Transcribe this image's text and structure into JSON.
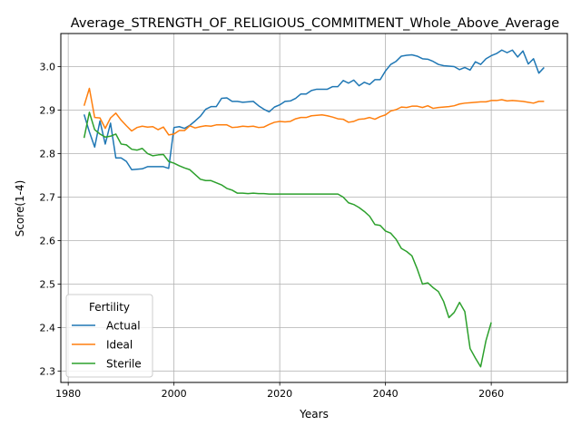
{
  "chart_data": {
    "type": "line",
    "title": "Average_STRENGTH_OF_RELIGIOUS_COMMITMENT_Whole_Above_Average",
    "xlabel": "Years",
    "ylabel": "Score(1-4)",
    "xlim": [
      1978.6,
      2074.4
    ],
    "ylim": [
      2.274,
      3.076
    ],
    "xticks": [
      1980,
      2000,
      2020,
      2040,
      2060
    ],
    "yticks": [
      2.3,
      2.4,
      2.5,
      2.6,
      2.7,
      2.8,
      2.9,
      3.0
    ],
    "ytick_labels": [
      "2.3",
      "2.4",
      "2.5",
      "2.6",
      "2.7",
      "2.8",
      "2.9",
      "3.0"
    ],
    "grid": true,
    "legend": {
      "title": "Fertility",
      "position": "lower-left"
    },
    "series": [
      {
        "name": "Actual",
        "color": "#1f77b4",
        "points": [
          [
            1983,
            2.89
          ],
          [
            1984,
            2.85
          ],
          [
            1985,
            2.815
          ],
          [
            1986,
            2.875
          ],
          [
            1987,
            2.822
          ],
          [
            1988,
            2.87
          ],
          [
            1989,
            2.79
          ],
          [
            1990,
            2.79
          ],
          [
            1991,
            2.782
          ],
          [
            1992,
            2.763
          ],
          [
            1993,
            2.764
          ],
          [
            1994,
            2.765
          ],
          [
            1995,
            2.77
          ],
          [
            1996,
            2.77
          ],
          [
            1997,
            2.77
          ],
          [
            1998,
            2.77
          ],
          [
            1999,
            2.766
          ],
          [
            2000,
            2.86
          ],
          [
            2001,
            2.862
          ],
          [
            2002,
            2.858
          ],
          [
            2003,
            2.865
          ],
          [
            2004,
            2.875
          ],
          [
            2005,
            2.886
          ],
          [
            2006,
            2.902
          ],
          [
            2007,
            2.908
          ],
          [
            2008,
            2.908
          ],
          [
            2009,
            2.927
          ],
          [
            2010,
            2.928
          ],
          [
            2011,
            2.92
          ],
          [
            2012,
            2.92
          ],
          [
            2013,
            2.918
          ],
          [
            2014,
            2.919
          ],
          [
            2015,
            2.92
          ],
          [
            2016,
            2.91
          ],
          [
            2017,
            2.902
          ],
          [
            2018,
            2.896
          ],
          [
            2019,
            2.907
          ],
          [
            2020,
            2.912
          ],
          [
            2021,
            2.92
          ],
          [
            2022,
            2.921
          ],
          [
            2023,
            2.927
          ],
          [
            2024,
            2.937
          ],
          [
            2025,
            2.937
          ],
          [
            2026,
            2.945
          ],
          [
            2027,
            2.948
          ],
          [
            2028,
            2.948
          ],
          [
            2029,
            2.948
          ],
          [
            2030,
            2.954
          ],
          [
            2031,
            2.954
          ],
          [
            2032,
            2.968
          ],
          [
            2033,
            2.962
          ],
          [
            2034,
            2.969
          ],
          [
            2035,
            2.956
          ],
          [
            2036,
            2.964
          ],
          [
            2037,
            2.959
          ],
          [
            2038,
            2.97
          ],
          [
            2039,
            2.97
          ],
          [
            2040,
            2.99
          ],
          [
            2041,
            3.005
          ],
          [
            2042,
            3.012
          ],
          [
            2043,
            3.024
          ],
          [
            2044,
            3.026
          ],
          [
            2045,
            3.027
          ],
          [
            2046,
            3.024
          ],
          [
            2047,
            3.018
          ],
          [
            2048,
            3.017
          ],
          [
            2049,
            3.012
          ],
          [
            2050,
            3.005
          ],
          [
            2051,
            3.002
          ],
          [
            2052,
            3.001
          ],
          [
            2053,
            3.0
          ],
          [
            2054,
            2.993
          ],
          [
            2055,
            2.998
          ],
          [
            2056,
            2.992
          ],
          [
            2057,
            3.011
          ],
          [
            2058,
            3.005
          ],
          [
            2059,
            3.018
          ],
          [
            2060,
            3.025
          ],
          [
            2061,
            3.03
          ],
          [
            2062,
            3.038
          ],
          [
            2063,
            3.032
          ],
          [
            2064,
            3.038
          ],
          [
            2065,
            3.022
          ],
          [
            2066,
            3.036
          ],
          [
            2067,
            3.006
          ],
          [
            2068,
            3.018
          ],
          [
            2069,
            2.985
          ],
          [
            2070,
            2.998
          ]
        ]
      },
      {
        "name": "Ideal",
        "color": "#ff7f0e",
        "points": [
          [
            1983,
            2.91
          ],
          [
            1984,
            2.95
          ],
          [
            1985,
            2.883
          ],
          [
            1986,
            2.882
          ],
          [
            1987,
            2.858
          ],
          [
            1988,
            2.882
          ],
          [
            1989,
            2.893
          ],
          [
            1990,
            2.877
          ],
          [
            1991,
            2.864
          ],
          [
            1992,
            2.852
          ],
          [
            1993,
            2.86
          ],
          [
            1994,
            2.863
          ],
          [
            1995,
            2.861
          ],
          [
            1996,
            2.862
          ],
          [
            1997,
            2.855
          ],
          [
            1998,
            2.861
          ],
          [
            1999,
            2.843
          ],
          [
            2000,
            2.845
          ],
          [
            2001,
            2.853
          ],
          [
            2002,
            2.853
          ],
          [
            2003,
            2.864
          ],
          [
            2004,
            2.859
          ],
          [
            2005,
            2.862
          ],
          [
            2006,
            2.864
          ],
          [
            2007,
            2.863
          ],
          [
            2008,
            2.866
          ],
          [
            2009,
            2.866
          ],
          [
            2010,
            2.866
          ],
          [
            2011,
            2.86
          ],
          [
            2012,
            2.861
          ],
          [
            2013,
            2.863
          ],
          [
            2014,
            2.862
          ],
          [
            2015,
            2.863
          ],
          [
            2016,
            2.86
          ],
          [
            2017,
            2.861
          ],
          [
            2018,
            2.867
          ],
          [
            2019,
            2.872
          ],
          [
            2020,
            2.874
          ],
          [
            2021,
            2.873
          ],
          [
            2022,
            2.874
          ],
          [
            2023,
            2.88
          ],
          [
            2024,
            2.883
          ],
          [
            2025,
            2.883
          ],
          [
            2026,
            2.887
          ],
          [
            2027,
            2.888
          ],
          [
            2028,
            2.889
          ],
          [
            2029,
            2.887
          ],
          [
            2030,
            2.884
          ],
          [
            2031,
            2.88
          ],
          [
            2032,
            2.879
          ],
          [
            2033,
            2.872
          ],
          [
            2034,
            2.874
          ],
          [
            2035,
            2.879
          ],
          [
            2036,
            2.88
          ],
          [
            2037,
            2.883
          ],
          [
            2038,
            2.879
          ],
          [
            2039,
            2.885
          ],
          [
            2040,
            2.889
          ],
          [
            2041,
            2.898
          ],
          [
            2042,
            2.901
          ],
          [
            2043,
            2.907
          ],
          [
            2044,
            2.906
          ],
          [
            2045,
            2.909
          ],
          [
            2046,
            2.909
          ],
          [
            2047,
            2.906
          ],
          [
            2048,
            2.91
          ],
          [
            2049,
            2.904
          ],
          [
            2050,
            2.906
          ],
          [
            2051,
            2.907
          ],
          [
            2052,
            2.908
          ],
          [
            2053,
            2.91
          ],
          [
            2054,
            2.914
          ],
          [
            2055,
            2.916
          ],
          [
            2056,
            2.917
          ],
          [
            2057,
            2.918
          ],
          [
            2058,
            2.919
          ],
          [
            2059,
            2.919
          ],
          [
            2060,
            2.922
          ],
          [
            2061,
            2.922
          ],
          [
            2062,
            2.924
          ],
          [
            2063,
            2.921
          ],
          [
            2064,
            2.922
          ],
          [
            2065,
            2.921
          ],
          [
            2066,
            2.92
          ],
          [
            2067,
            2.918
          ],
          [
            2068,
            2.916
          ],
          [
            2069,
            2.92
          ],
          [
            2070,
            2.92
          ]
        ]
      },
      {
        "name": "Sterile",
        "color": "#2ca02c",
        "points": [
          [
            1983,
            2.836
          ],
          [
            1984,
            2.895
          ],
          [
            1985,
            2.855
          ],
          [
            1986,
            2.845
          ],
          [
            1987,
            2.838
          ],
          [
            1988,
            2.84
          ],
          [
            1989,
            2.845
          ],
          [
            1990,
            2.822
          ],
          [
            1991,
            2.82
          ],
          [
            1992,
            2.81
          ],
          [
            1993,
            2.808
          ],
          [
            1994,
            2.812
          ],
          [
            1995,
            2.8
          ],
          [
            1996,
            2.795
          ],
          [
            1997,
            2.797
          ],
          [
            1998,
            2.798
          ],
          [
            1999,
            2.782
          ],
          [
            2000,
            2.778
          ],
          [
            2001,
            2.772
          ],
          [
            2002,
            2.767
          ],
          [
            2003,
            2.763
          ],
          [
            2004,
            2.752
          ],
          [
            2005,
            2.741
          ],
          [
            2006,
            2.738
          ],
          [
            2007,
            2.738
          ],
          [
            2008,
            2.733
          ],
          [
            2009,
            2.728
          ],
          [
            2010,
            2.72
          ],
          [
            2011,
            2.716
          ],
          [
            2012,
            2.709
          ],
          [
            2013,
            2.709
          ],
          [
            2014,
            2.708
          ],
          [
            2015,
            2.709
          ],
          [
            2016,
            2.708
          ],
          [
            2017,
            2.708
          ],
          [
            2018,
            2.707
          ],
          [
            2019,
            2.707
          ],
          [
            2020,
            2.707
          ],
          [
            2021,
            2.707
          ],
          [
            2022,
            2.707
          ],
          [
            2023,
            2.707
          ],
          [
            2024,
            2.707
          ],
          [
            2025,
            2.707
          ],
          [
            2026,
            2.707
          ],
          [
            2027,
            2.707
          ],
          [
            2028,
            2.707
          ],
          [
            2029,
            2.707
          ],
          [
            2030,
            2.707
          ],
          [
            2031,
            2.707
          ],
          [
            2032,
            2.7
          ],
          [
            2033,
            2.687
          ],
          [
            2034,
            2.683
          ],
          [
            2035,
            2.676
          ],
          [
            2036,
            2.667
          ],
          [
            2037,
            2.656
          ],
          [
            2038,
            2.637
          ],
          [
            2039,
            2.635
          ],
          [
            2040,
            2.622
          ],
          [
            2041,
            2.617
          ],
          [
            2042,
            2.603
          ],
          [
            2043,
            2.582
          ],
          [
            2044,
            2.575
          ],
          [
            2045,
            2.565
          ],
          [
            2046,
            2.535
          ],
          [
            2047,
            2.5
          ],
          [
            2048,
            2.503
          ],
          [
            2049,
            2.492
          ],
          [
            2050,
            2.483
          ],
          [
            2051,
            2.46
          ],
          [
            2052,
            2.423
          ],
          [
            2053,
            2.435
          ],
          [
            2054,
            2.458
          ],
          [
            2055,
            2.437
          ],
          [
            2056,
            2.352
          ],
          [
            2057,
            2.33
          ],
          [
            2058,
            2.31
          ],
          [
            2059,
            2.37
          ],
          [
            2060,
            2.412
          ]
        ]
      }
    ]
  }
}
